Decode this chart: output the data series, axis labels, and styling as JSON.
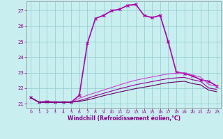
{
  "xlabel": "Windchill (Refroidissement éolien,°C)",
  "bg_color": "#c8eef0",
  "grid_color": "#90cccc",
  "xlim": [
    -0.5,
    23.5
  ],
  "ylim": [
    20.7,
    27.6
  ],
  "yticks": [
    21,
    22,
    23,
    24,
    25,
    26,
    27
  ],
  "xticks": [
    0,
    1,
    2,
    3,
    4,
    5,
    6,
    7,
    8,
    9,
    10,
    11,
    12,
    13,
    14,
    15,
    16,
    17,
    18,
    19,
    20,
    21,
    22,
    23
  ],
  "series": [
    {
      "x": [
        0,
        1,
        2,
        3,
        4,
        5,
        6,
        7,
        8,
        9,
        10,
        11,
        12,
        13,
        14,
        15,
        16,
        17,
        18,
        19,
        20,
        21,
        22,
        23
      ],
      "y": [
        21.4,
        21.1,
        21.15,
        21.1,
        21.1,
        21.1,
        21.55,
        24.9,
        26.5,
        26.7,
        27.0,
        27.1,
        27.35,
        27.4,
        26.7,
        26.55,
        26.7,
        25.0,
        23.05,
        22.95,
        22.8,
        22.55,
        22.45,
        22.15
      ],
      "marker": "x",
      "linestyle": "-",
      "linewidth": 1.2,
      "color": "#aa00aa"
    },
    {
      "x": [
        0,
        1,
        2,
        3,
        4,
        5,
        6,
        7,
        8,
        9,
        10,
        11,
        12,
        13,
        14,
        15,
        16,
        17,
        18,
        19,
        20,
        21,
        22,
        23
      ],
      "y": [
        21.4,
        21.1,
        21.1,
        21.1,
        21.1,
        21.1,
        21.35,
        21.55,
        21.72,
        21.88,
        22.05,
        22.22,
        22.38,
        22.52,
        22.63,
        22.73,
        22.83,
        22.92,
        22.97,
        23.0,
        22.85,
        22.72,
        22.25,
        22.12
      ],
      "marker": null,
      "linestyle": "-",
      "linewidth": 0.8,
      "color": "#cc44cc"
    },
    {
      "x": [
        0,
        1,
        2,
        3,
        4,
        5,
        6,
        7,
        8,
        9,
        10,
        11,
        12,
        13,
        14,
        15,
        16,
        17,
        18,
        19,
        20,
        21,
        22,
        23
      ],
      "y": [
        21.4,
        21.1,
        21.1,
        21.1,
        21.1,
        21.1,
        21.2,
        21.35,
        21.52,
        21.67,
        21.82,
        21.97,
        22.1,
        22.23,
        22.33,
        22.43,
        22.53,
        22.62,
        22.67,
        22.7,
        22.55,
        22.45,
        22.02,
        21.92
      ],
      "marker": null,
      "linestyle": "-",
      "linewidth": 0.8,
      "color": "#990099"
    },
    {
      "x": [
        0,
        1,
        2,
        3,
        4,
        5,
        6,
        7,
        8,
        9,
        10,
        11,
        12,
        13,
        14,
        15,
        16,
        17,
        18,
        19,
        20,
        21,
        22,
        23
      ],
      "y": [
        21.4,
        21.1,
        21.1,
        21.1,
        21.1,
        21.1,
        21.15,
        21.25,
        21.38,
        21.52,
        21.64,
        21.76,
        21.87,
        21.98,
        22.07,
        22.16,
        22.27,
        22.36,
        22.41,
        22.45,
        22.3,
        22.22,
        21.88,
        21.78
      ],
      "marker": null,
      "linestyle": "-",
      "linewidth": 0.8,
      "color": "#660066"
    }
  ]
}
